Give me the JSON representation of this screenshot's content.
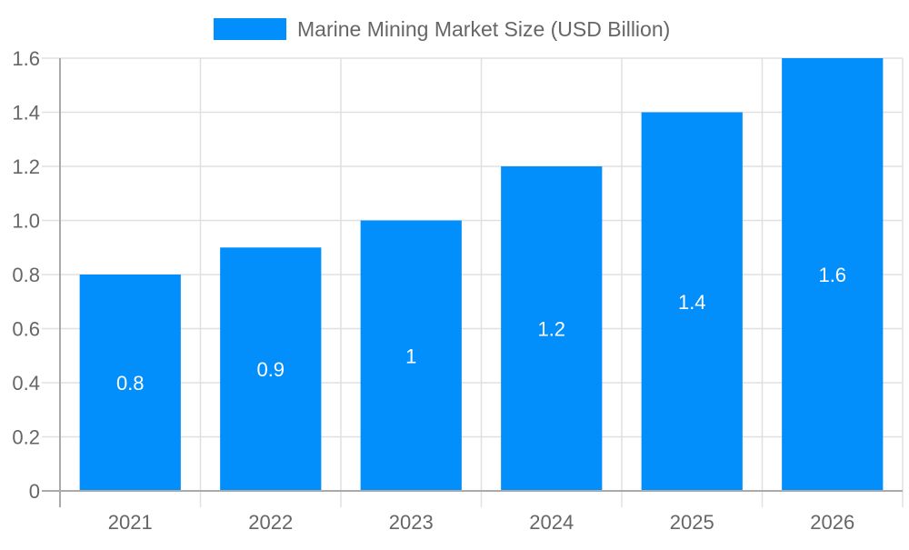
{
  "chart_data": {
    "type": "bar",
    "categories": [
      "2021",
      "2022",
      "2023",
      "2024",
      "2025",
      "2026"
    ],
    "series": [
      {
        "name": "Marine Mining Market Size (USD Billion)",
        "values": [
          0.8,
          0.9,
          1,
          1.2,
          1.4,
          1.6
        ],
        "color": "#038ffb"
      }
    ],
    "data_labels": [
      "0.8",
      "0.9",
      "1",
      "1.2",
      "1.4",
      "1.6"
    ],
    "yticks": [
      "0",
      "0.2",
      "0.4",
      "0.6",
      "0.8",
      "1.0",
      "1.2",
      "1.4",
      "1.6"
    ],
    "ylim": [
      0,
      1.6
    ],
    "grid": true,
    "legend": "top-center",
    "xlabel": "",
    "ylabel": ""
  }
}
